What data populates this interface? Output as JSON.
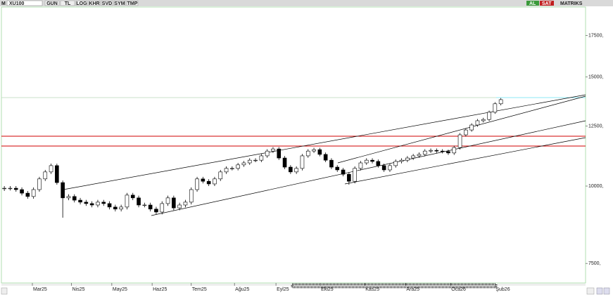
{
  "toolbar": {
    "symbol": "XU100",
    "mode": "M",
    "buttons": [
      "GUN",
      "TL",
      "LOG",
      "KHR",
      "SVD",
      "SYM",
      "TMP"
    ],
    "buy": "AL",
    "sell": "SAT",
    "brand": "MATRIKS"
  },
  "chart_data": {
    "type": "candlestick",
    "log_scale": true,
    "color_up": "#ffffff",
    "color_down": "#000000",
    "xlim": [
      0,
      100
    ],
    "xticks": [
      {
        "value": 5.3,
        "label": "Mar25"
      },
      {
        "value": 12,
        "label": "Nis25"
      },
      {
        "value": 18.9,
        "label": "May25"
      },
      {
        "value": 25.8,
        "label": "Haz25"
      },
      {
        "value": 32.5,
        "label": "Tem25"
      },
      {
        "value": 39.9,
        "label": "Ağu25"
      },
      {
        "value": 47,
        "label": "Eyl25"
      },
      {
        "value": 54.6,
        "label": "Eki25"
      },
      {
        "value": 62.2,
        "label": "Kas25"
      },
      {
        "value": 69.2,
        "label": "Ara25"
      },
      {
        "value": 76.9,
        "label": "Oca26"
      },
      {
        "value": 84.5,
        "label": "Şub26"
      }
    ],
    "ylim": [
      6975,
      19460
    ],
    "yticks": [
      {
        "value": 7500,
        "label": "7500,"
      },
      {
        "value": 10000,
        "label": "10000,"
      },
      {
        "value": 12500,
        "label": "12500,"
      },
      {
        "value": 15000,
        "label": "15000,"
      },
      {
        "value": 17500,
        "label": "17500,"
      }
    ],
    "open": [
      9900,
      9920,
      9920,
      9870,
      9740,
      9620,
      9870,
      10270,
      10540,
      10790,
      10130,
      9570,
      9620,
      9490,
      9420,
      9370,
      9320,
      9420,
      9370,
      9250,
      9180,
      9250,
      9670,
      9570,
      9320,
      9320,
      9180,
      9080,
      9370,
      9570,
      9220,
      9320,
      9420,
      9870,
      10270,
      10180,
      10080,
      10270,
      10540,
      10680,
      10680,
      10820,
      10900,
      11010,
      11010,
      11190,
      11390,
      11480,
      11100,
      10730,
      10540,
      10680,
      11190,
      11390,
      11450,
      11250,
      11010,
      10730,
      10620,
      10450,
      10180,
      10680,
      10900,
      11010,
      10960,
      10790,
      10620,
      10790,
      10960,
      11010,
      11100,
      11190,
      11250,
      11390,
      11420,
      11390,
      11370,
      11310,
      11540,
      12100,
      12320,
      12550,
      12750,
      12810,
      13160,
      13580
    ],
    "high": [
      10000,
      10000,
      10000,
      9950,
      9820,
      9950,
      10350,
      10620,
      10870,
      10870,
      10210,
      9700,
      9700,
      9570,
      9500,
      9450,
      9500,
      9500,
      9450,
      9330,
      9330,
      9750,
      9750,
      9650,
      9400,
      9400,
      9260,
      9450,
      9650,
      9650,
      9400,
      9500,
      9950,
      10350,
      10350,
      10260,
      10350,
      10620,
      10760,
      10760,
      10900,
      10980,
      11090,
      11090,
      11270,
      11470,
      11560,
      11560,
      11180,
      10810,
      10760,
      11270,
      11470,
      11530,
      11530,
      11330,
      11090,
      10810,
      10700,
      10530,
      10760,
      10980,
      11090,
      11090,
      11040,
      10870,
      10870,
      11040,
      11090,
      11180,
      11270,
      11330,
      11470,
      11500,
      11500,
      11470,
      11450,
      11620,
      12180,
      12400,
      12630,
      12830,
      12890,
      13240,
      13660,
      13870
    ],
    "low": [
      9820,
      9840,
      9790,
      9660,
      9540,
      9540,
      9790,
      10190,
      10460,
      10050,
      8890,
      9490,
      9410,
      9340,
      9290,
      9240,
      9240,
      9290,
      9170,
      9100,
      9100,
      9170,
      9490,
      9240,
      9240,
      9100,
      9000,
      9000,
      9290,
      9140,
      9140,
      9240,
      9340,
      9790,
      10100,
      10000,
      10000,
      10190,
      10460,
      10600,
      10600,
      10740,
      10820,
      10930,
      10930,
      11110,
      11310,
      11020,
      10650,
      10460,
      10460,
      10600,
      11110,
      11310,
      11170,
      10930,
      10650,
      10540,
      10370,
      10050,
      10100,
      10600,
      10820,
      10880,
      10710,
      10540,
      10540,
      10710,
      10880,
      10930,
      11020,
      11110,
      11170,
      11310,
      11310,
      11290,
      11230,
      11230,
      11460,
      12020,
      12240,
      12470,
      12670,
      12730,
      13080,
      13500
    ],
    "close": [
      9920,
      9920,
      9870,
      9740,
      9620,
      9870,
      10270,
      10540,
      10790,
      10130,
      9570,
      9620,
      9490,
      9420,
      9370,
      9320,
      9420,
      9370,
      9250,
      9180,
      9250,
      9670,
      9570,
      9320,
      9320,
      9180,
      9080,
      9370,
      9570,
      9220,
      9320,
      9420,
      9870,
      10270,
      10180,
      10080,
      10270,
      10540,
      10680,
      10680,
      10820,
      10900,
      11010,
      11010,
      11190,
      11390,
      11480,
      11100,
      10730,
      10540,
      10680,
      11190,
      11390,
      11450,
      11250,
      11010,
      10730,
      10620,
      10450,
      10180,
      10680,
      10900,
      11010,
      10960,
      10790,
      10620,
      10790,
      10960,
      11010,
      11100,
      11190,
      11250,
      11390,
      11420,
      11390,
      11370,
      11310,
      11540,
      12100,
      12320,
      12550,
      12750,
      12810,
      13160,
      13580,
      13790
    ]
  }
}
